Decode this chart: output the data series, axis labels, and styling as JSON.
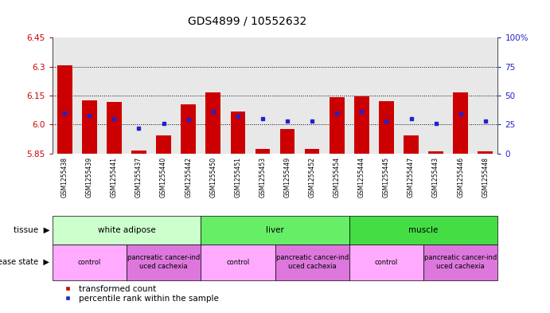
{
  "title": "GDS4899 / 10552632",
  "samples": [
    "GSM1255438",
    "GSM1255439",
    "GSM1255441",
    "GSM1255437",
    "GSM1255440",
    "GSM1255442",
    "GSM1255450",
    "GSM1255451",
    "GSM1255453",
    "GSM1255449",
    "GSM1255452",
    "GSM1255454",
    "GSM1255444",
    "GSM1255445",
    "GSM1255447",
    "GSM1255443",
    "GSM1255446",
    "GSM1255448"
  ],
  "transformed_count": [
    6.305,
    6.125,
    6.115,
    5.865,
    5.945,
    6.105,
    6.165,
    6.065,
    5.875,
    5.975,
    5.875,
    6.14,
    6.145,
    6.12,
    5.945,
    5.86,
    6.165,
    5.86
  ],
  "percentile_rank": [
    35,
    33,
    30,
    22,
    26,
    29,
    36,
    32,
    30,
    28,
    28,
    35,
    36,
    28,
    30,
    26,
    34,
    28
  ],
  "ylim_left": [
    5.85,
    6.45
  ],
  "ylim_right": [
    0,
    100
  ],
  "yticks_left": [
    5.85,
    6.0,
    6.15,
    6.3,
    6.45
  ],
  "yticks_right": [
    0,
    25,
    50,
    75,
    100
  ],
  "ytick_labels_right": [
    "0",
    "25",
    "50",
    "75",
    "100%"
  ],
  "bar_color": "#cc0000",
  "marker_color": "#2222cc",
  "bar_bottom": 5.85,
  "hgrid_lines": [
    6.0,
    6.15,
    6.3
  ],
  "plot_bg_color": "#e8e8e8",
  "xtick_bg_color": "#c8c8c8",
  "tissue_groups": [
    {
      "label": "white adipose",
      "start": 0,
      "end": 6,
      "color": "#ccffcc"
    },
    {
      "label": "liver",
      "start": 6,
      "end": 12,
      "color": "#66ee66"
    },
    {
      "label": "muscle",
      "start": 12,
      "end": 18,
      "color": "#44dd44"
    }
  ],
  "disease_groups": [
    {
      "label": "control",
      "start": 0,
      "end": 3,
      "color": "#ffaaff"
    },
    {
      "label": "pancreatic cancer-ind\nuced cachexia",
      "start": 3,
      "end": 6,
      "color": "#dd77dd"
    },
    {
      "label": "control",
      "start": 6,
      "end": 9,
      "color": "#ffaaff"
    },
    {
      "label": "pancreatic cancer-ind\nuced cachexia",
      "start": 9,
      "end": 12,
      "color": "#dd77dd"
    },
    {
      "label": "control",
      "start": 12,
      "end": 15,
      "color": "#ffaaff"
    },
    {
      "label": "pancreatic cancer-ind\nuced cachexia",
      "start": 15,
      "end": 18,
      "color": "#dd77dd"
    }
  ],
  "background_color": "#ffffff",
  "title_fontsize": 10,
  "tick_fontsize": 7.5,
  "sample_fontsize": 5.5,
  "row_fontsize": 7.5,
  "legend_fontsize": 7.5
}
